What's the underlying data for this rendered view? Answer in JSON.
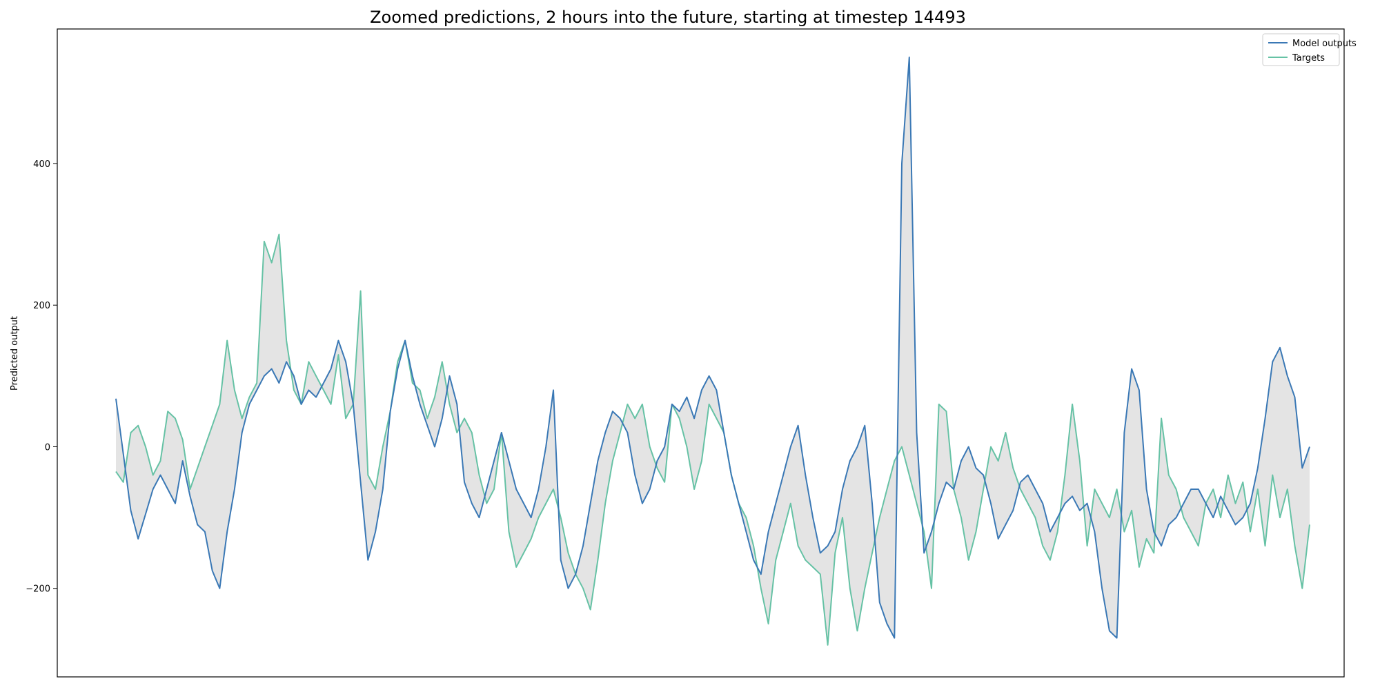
{
  "chart_data": {
    "type": "line",
    "title": "Zoomed predictions, 2 hours into the future, starting at timestep 14493",
    "xlabel": "",
    "ylabel": "Predicted output",
    "ylim": [
      -325,
      590
    ],
    "yticks": [
      -200,
      0,
      200,
      400
    ],
    "grid": false,
    "legend_position": "top-right",
    "fill_between": true,
    "colors": {
      "model": "#3a78b5",
      "targets": "#66c2a5",
      "fill": "#d9d9d9"
    },
    "x_start": 0,
    "x_end": 100,
    "series": [
      {
        "name": "Model outputs",
        "values": [
          68,
          -10,
          -90,
          -130,
          -95,
          -60,
          -40,
          -60,
          -80,
          -20,
          -70,
          -110,
          -120,
          -175,
          -200,
          -120,
          -60,
          20,
          60,
          80,
          100,
          110,
          90,
          120,
          100,
          60,
          80,
          70,
          90,
          110,
          150,
          120,
          60,
          -50,
          -160,
          -120,
          -60,
          50,
          110,
          150,
          100,
          60,
          30,
          0,
          40,
          100,
          60,
          -50,
          -80,
          -100,
          -60,
          -20,
          20,
          -20,
          -60,
          -80,
          -100,
          -60,
          0,
          80,
          -160,
          -200,
          -180,
          -140,
          -80,
          -20,
          20,
          50,
          40,
          20,
          -40,
          -80,
          -60,
          -20,
          0,
          60,
          50,
          70,
          40,
          80,
          100,
          80,
          20,
          -40,
          -80,
          -120,
          -160,
          -180,
          -120,
          -80,
          -40,
          0,
          30,
          -40,
          -100,
          -150,
          -140,
          -120,
          -60,
          -20,
          0,
          30,
          -80,
          -220,
          -250,
          -270,
          400,
          550,
          20,
          -150,
          -120,
          -80,
          -50,
          -60,
          -20,
          0,
          -30,
          -40,
          -80,
          -130,
          -110,
          -90,
          -50,
          -40,
          -60,
          -80,
          -120,
          -100,
          -80,
          -70,
          -90,
          -80,
          -120,
          -200,
          -260,
          -270,
          20,
          110,
          80,
          -60,
          -120,
          -140,
          -110,
          -100,
          -80,
          -60,
          -60,
          -80,
          -100,
          -70,
          -90,
          -110,
          -100,
          -80,
          -30,
          40,
          120,
          140,
          100,
          70,
          -30,
          0
        ]
      },
      {
        "name": "Targets",
        "values": [
          -35,
          -50,
          20,
          30,
          0,
          -40,
          -20,
          50,
          40,
          10,
          -60,
          -30,
          0,
          30,
          60,
          150,
          80,
          40,
          70,
          90,
          290,
          260,
          300,
          150,
          80,
          60,
          120,
          100,
          80,
          60,
          130,
          40,
          60,
          220,
          -40,
          -60,
          0,
          50,
          120,
          150,
          90,
          80,
          40,
          70,
          120,
          60,
          20,
          40,
          20,
          -40,
          -80,
          -60,
          20,
          -120,
          -170,
          -150,
          -130,
          -100,
          -80,
          -60,
          -100,
          -150,
          -180,
          -200,
          -230,
          -160,
          -80,
          -20,
          20,
          60,
          40,
          60,
          0,
          -30,
          -50,
          60,
          40,
          0,
          -60,
          -20,
          60,
          40,
          20,
          -40,
          -80,
          -100,
          -140,
          -200,
          -250,
          -160,
          -120,
          -80,
          -140,
          -160,
          -170,
          -180,
          -280,
          -150,
          -100,
          -200,
          -260,
          -200,
          -150,
          -100,
          -60,
          -20,
          0,
          -40,
          -80,
          -120,
          -200,
          60,
          50,
          -60,
          -100,
          -160,
          -120,
          -60,
          0,
          -20,
          20,
          -30,
          -60,
          -80,
          -100,
          -140,
          -160,
          -120,
          -40,
          60,
          -20,
          -140,
          -60,
          -80,
          -100,
          -60,
          -120,
          -90,
          -170,
          -130,
          -150,
          40,
          -40,
          -60,
          -100,
          -120,
          -140,
          -80,
          -60,
          -100,
          -40,
          -80,
          -50,
          -120,
          -60,
          -140,
          -40,
          -100,
          -60,
          -140,
          -200,
          -110
        ]
      }
    ]
  }
}
